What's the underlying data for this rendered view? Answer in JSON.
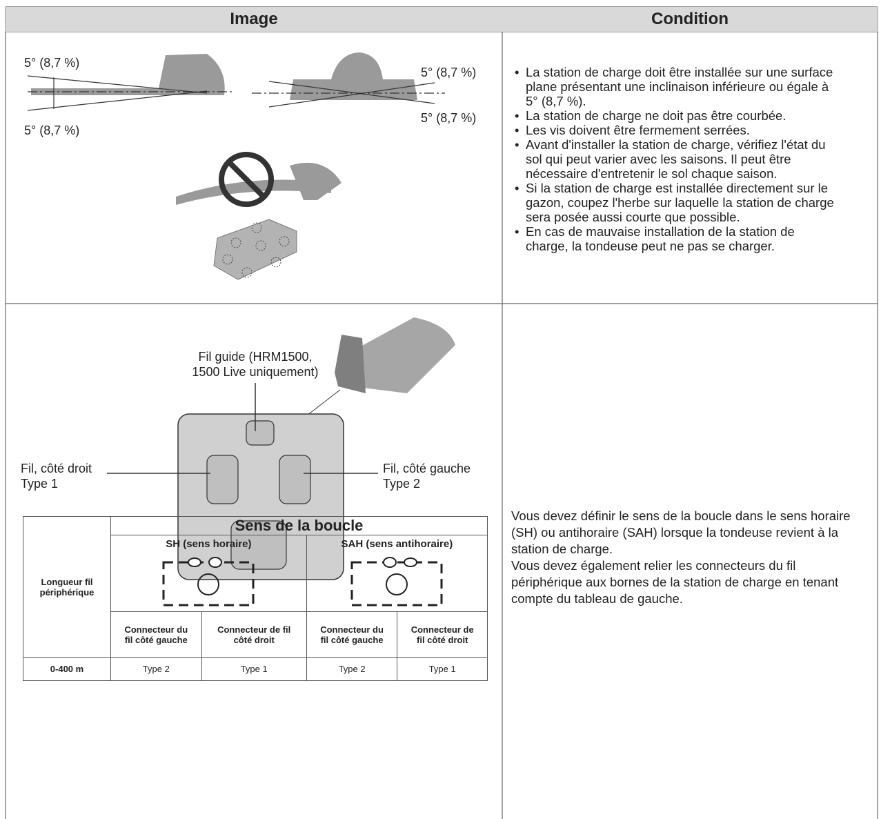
{
  "header": {
    "image": "Image",
    "condition": "Condition"
  },
  "slope_row": {
    "angle_labels": [
      "5° (8,7 %)",
      "5° (8,7 %)",
      "5° (8,7 %)",
      "5° (8,7 %)"
    ],
    "conditions": [
      "La station de charge doit être installée sur une surface plane présentant une inclinaison inférieure ou égale à 5° (8,7 %).",
      "La station de charge ne doit pas être courbée.",
      "Les vis doivent être fermement serrées.",
      "Avant d'installer la station de charge, vérifiez l'état du sol qui peut varier avec les saisons. Il peut être nécessaire d'entretenir le sol chaque saison.",
      "Si la station de charge est installée directement sur le gazon, coupez l'herbe sur laquelle la station de charge sera posée aussi courte que possible.",
      "En cas de mauvaise installation de la station de charge, la tondeuse peut ne pas se charger."
    ]
  },
  "wire_row": {
    "guide_wire": [
      "Fil guide (HRM1500,",
      "1500 Live uniquement)"
    ],
    "right_wire": [
      "Fil, côté droit",
      "Type 1"
    ],
    "left_wire": [
      "Fil, côté gauche",
      "Type 2"
    ],
    "loop_table": {
      "title": "Sens de la boucle",
      "row_header": [
        "Longueur fil",
        "périphérique"
      ],
      "directions": [
        "SH (sens horaire)",
        "SAH (sens antihoraire)"
      ],
      "columns": [
        [
          "Connecteur du",
          "fil côté gauche"
        ],
        [
          "Connecteur de fil",
          "côté droit"
        ],
        [
          "Connecteur du",
          "fil côté gauche"
        ],
        [
          "Connecteur de",
          "fil côté droit"
        ]
      ],
      "rows": [
        [
          "0-400 m",
          "Type 2",
          "Type 1",
          "Type 2",
          "Type 1"
        ]
      ]
    },
    "condition": [
      "Vous devez définir le sens de la boucle dans le sens horaire (SH) ou antihoraire (SAH) lorsque la tondeuse revient à la station de charge.",
      "Vous devez également relier les connecteurs du fil périphérique aux bornes de la station de charge en tenant compte du tableau de gauche."
    ]
  }
}
